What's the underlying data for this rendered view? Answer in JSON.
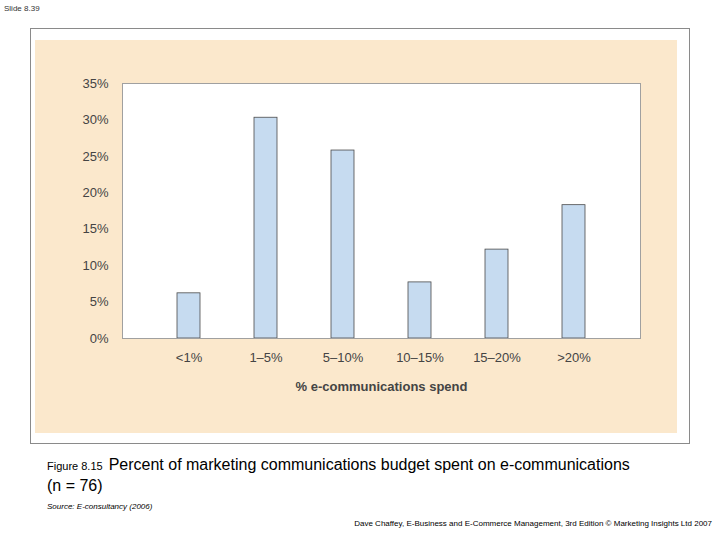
{
  "chart_data": {
    "type": "bar",
    "title": "Percent of marketing communications budget spent on e-communications",
    "subtitle": "(n = 76)",
    "x_label": "% e-communications spend",
    "categories": [
      "<1%",
      "1–5%",
      "5–10%",
      "10–15%",
      "15–20%",
      ">20%"
    ],
    "values": [
      6.2,
      30.3,
      25.8,
      7.7,
      12.2,
      18.3
    ],
    "color": "#c6dbf0",
    "ylim": [
      0,
      35
    ],
    "yticks": [
      {
        "value": 0,
        "label": "0%"
      },
      {
        "value": 5,
        "label": "5%"
      },
      {
        "value": 10,
        "label": "10%"
      },
      {
        "value": 15,
        "label": "15%"
      },
      {
        "value": 20,
        "label": "20%"
      },
      {
        "value": 25,
        "label": "25%"
      },
      {
        "value": 30,
        "label": "30%"
      },
      {
        "value": 35,
        "label": "35%"
      }
    ],
    "grid": false,
    "annotations": {
      "slide": "Slide 8.39",
      "figure": "Figure 8.15",
      "source": "Source: E-consultancy (2006)",
      "footer": "Dave Chaffey, E-Business and E-Commerce Management, 3rd Edition © Marketing Insights Ltd 2007"
    }
  }
}
